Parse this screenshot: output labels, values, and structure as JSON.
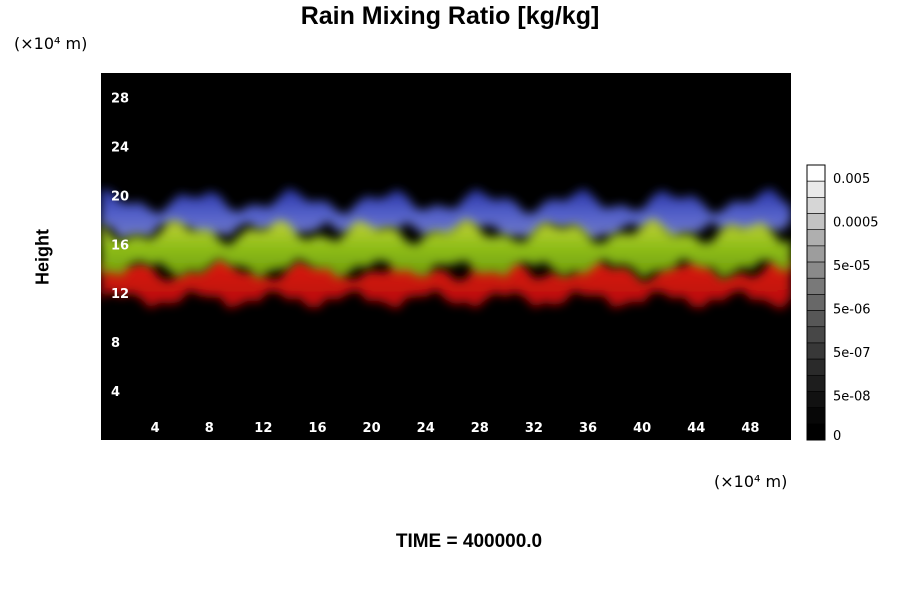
{
  "chart_data": {
    "type": "heatmap",
    "title": "Rain Mixing Ratio [kg/kg]",
    "ylabel": "Height",
    "y_unit": "(×10⁴ m)",
    "x_unit": "(×10⁴ m)",
    "x_ticks": [
      "4",
      "8",
      "12",
      "16",
      "20",
      "24",
      "28",
      "32",
      "36",
      "40",
      "44",
      "48"
    ],
    "y_ticks": [
      "4",
      "8",
      "12",
      "16",
      "20",
      "24",
      "28"
    ],
    "xlim": [
      0,
      51
    ],
    "ylim": [
      0,
      30
    ],
    "grid": false,
    "colorbar": {
      "labels": [
        "0.005",
        "0.0005",
        "5e-05",
        "5e-06",
        "5e-07",
        "5e-08",
        "0"
      ],
      "bands": 17,
      "position": "right"
    },
    "field_bands": [
      {
        "name": "blue",
        "color": "#4455cc",
        "y_bottom": 17,
        "y_top": 19.5
      },
      {
        "name": "green",
        "color": "#88bb11",
        "y_bottom": 14,
        "y_top": 17
      },
      {
        "name": "red",
        "color": "#dd1111",
        "y_bottom": 11.5,
        "y_top": 14
      }
    ],
    "background_color": "#000000",
    "time_label": "TIME = 400000.0"
  }
}
